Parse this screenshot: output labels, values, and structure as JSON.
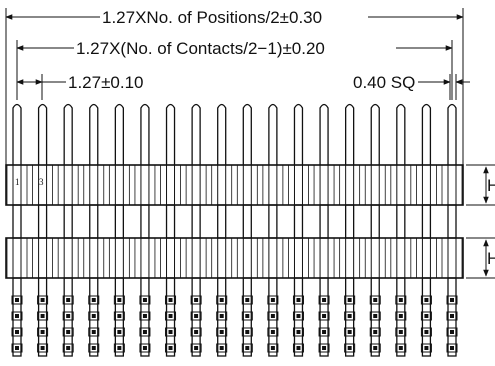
{
  "dimensions": {
    "overall_length": "1.27XNo. of Positions/2±0.30",
    "contact_span": "1.27X(No. of Contacts/2−1)±0.20",
    "pitch": "1.27±0.10",
    "pin_size": "0.40 SQ"
  },
  "connector": {
    "pin_count_per_row": 18,
    "pin_numbers": [
      "1",
      "3"
    ],
    "side_label_top": "H",
    "side_label_bottom": "H"
  }
}
